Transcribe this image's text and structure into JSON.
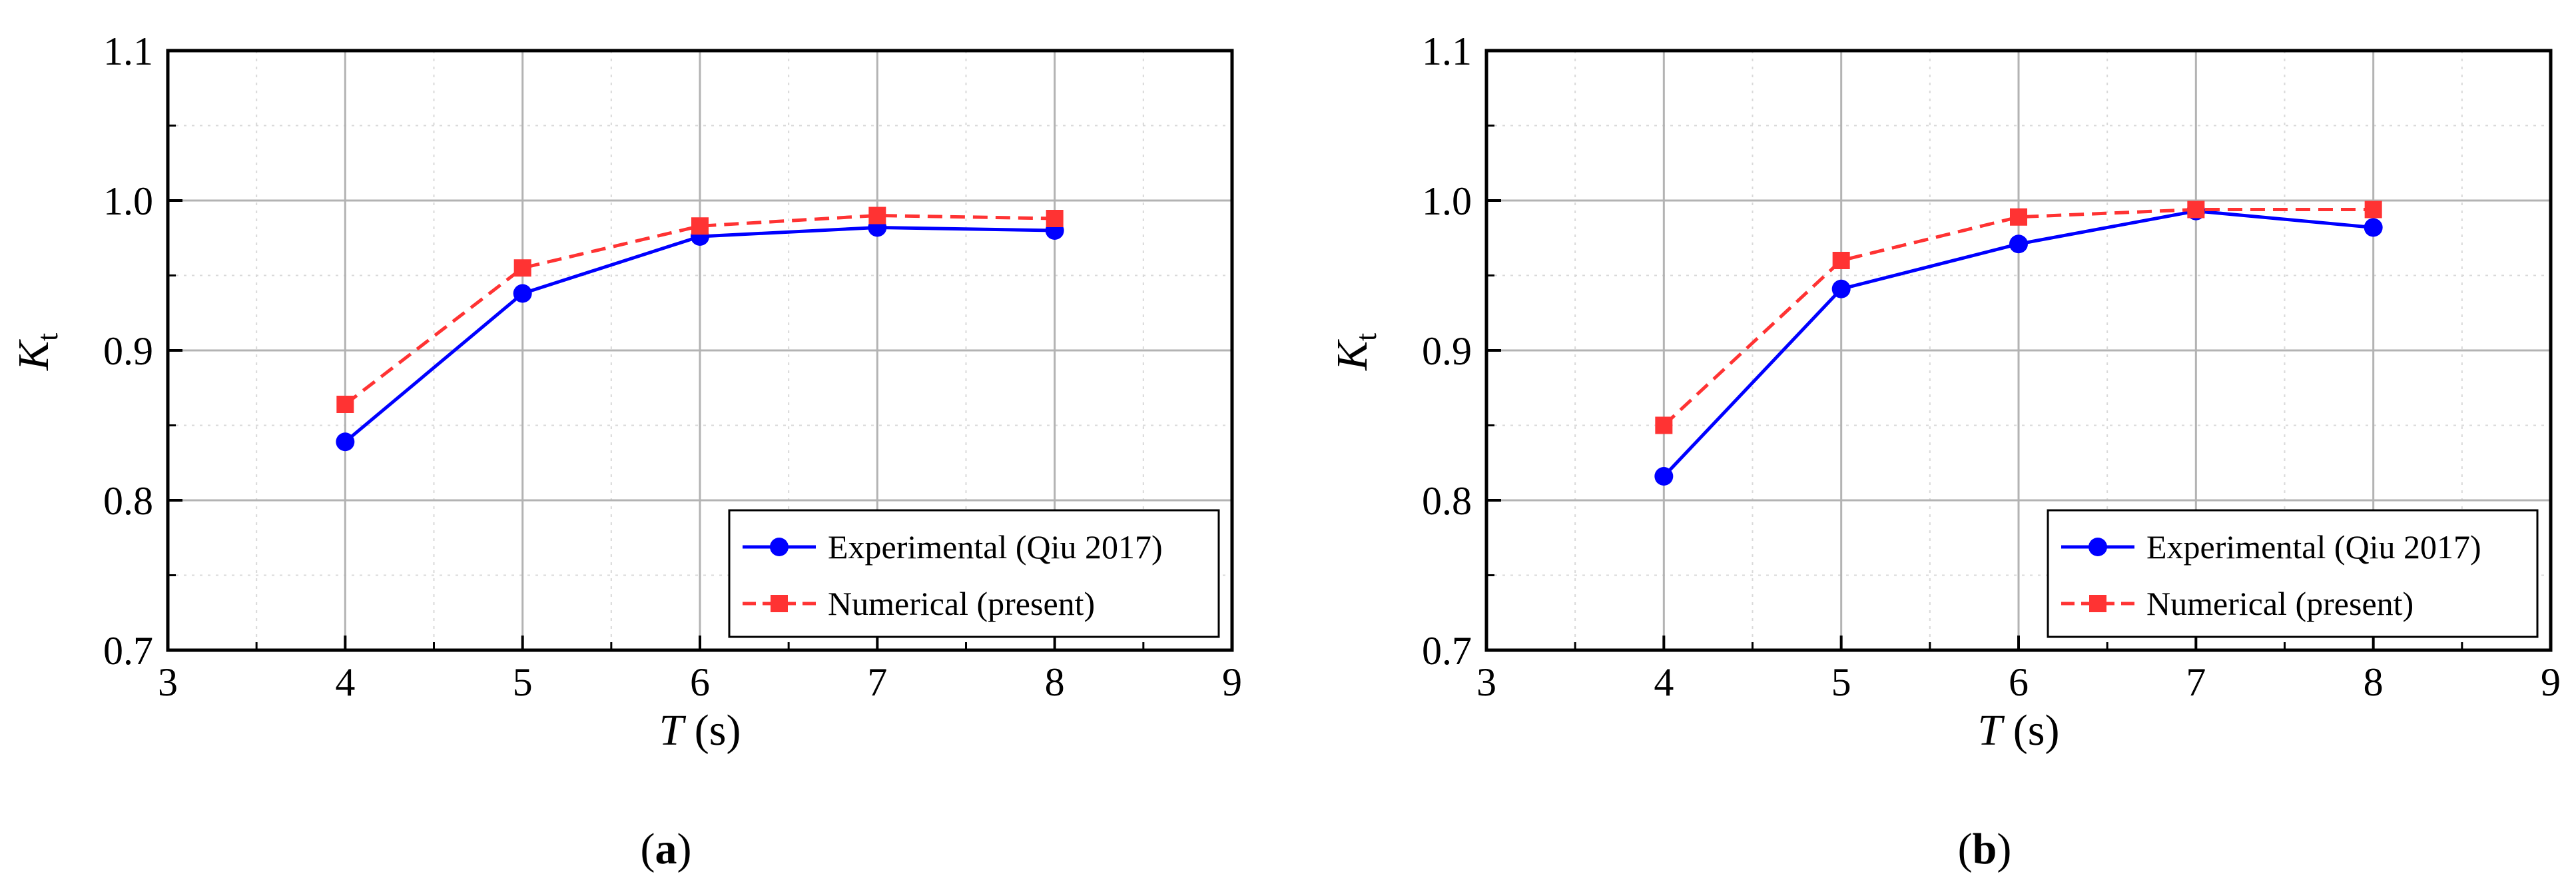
{
  "chart_data": [
    {
      "type": "line",
      "panel_label": "a",
      "xlabel": "T",
      "xlabel_unit": "(s)",
      "ylabel": "K",
      "ylabel_subscript": "t",
      "xlim": [
        3,
        9
      ],
      "ylim": [
        0.7,
        1.1
      ],
      "x_ticks": [
        "3",
        "4",
        "5",
        "6",
        "7",
        "8",
        "9"
      ],
      "y_ticks": [
        "0.7",
        "0.8",
        "0.9",
        "1.0",
        "1.1"
      ],
      "grid": true,
      "legend_position": "bottom-right",
      "series": [
        {
          "name": "Experimental (Qiu 2017)",
          "color": "#0000ff",
          "marker": "circle",
          "line": "solid",
          "x": [
            4,
            5,
            6,
            7,
            8
          ],
          "values": [
            0.839,
            0.938,
            0.976,
            0.982,
            0.98
          ]
        },
        {
          "name": "Numerical (present)",
          "color": "#ff3333",
          "marker": "square",
          "line": "dashed",
          "x": [
            4,
            5,
            6,
            7,
            8
          ],
          "values": [
            0.864,
            0.955,
            0.983,
            0.99,
            0.988
          ]
        }
      ]
    },
    {
      "type": "line",
      "panel_label": "b",
      "xlabel": "T",
      "xlabel_unit": "(s)",
      "ylabel": "K",
      "ylabel_subscript": "t",
      "xlim": [
        3,
        9
      ],
      "ylim": [
        0.7,
        1.1
      ],
      "x_ticks": [
        "3",
        "4",
        "5",
        "6",
        "7",
        "8",
        "9"
      ],
      "y_ticks": [
        "0.7",
        "0.8",
        "0.9",
        "1.0",
        "1.1"
      ],
      "grid": true,
      "legend_position": "bottom-right",
      "series": [
        {
          "name": "Experimental (Qiu 2017)",
          "color": "#0000ff",
          "marker": "circle",
          "line": "solid",
          "x": [
            4,
            5,
            6,
            7,
            8
          ],
          "values": [
            0.816,
            0.941,
            0.971,
            0.993,
            0.982
          ]
        },
        {
          "name": "Numerical (present)",
          "color": "#ff3333",
          "marker": "square",
          "line": "dashed",
          "x": [
            4,
            5,
            6,
            7,
            8
          ],
          "values": [
            0.85,
            0.96,
            0.989,
            0.994,
            0.994
          ]
        }
      ]
    }
  ]
}
